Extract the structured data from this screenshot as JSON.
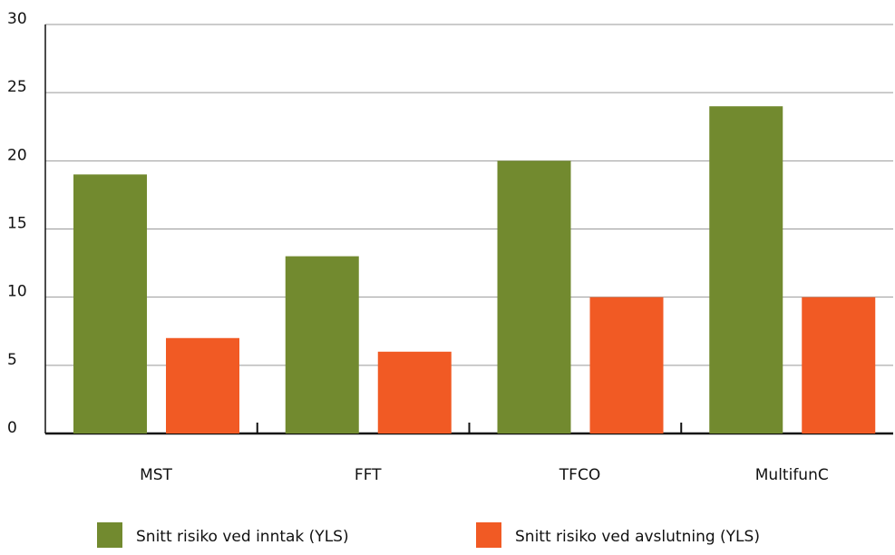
{
  "chart_data": {
    "type": "bar",
    "categories": [
      "MST",
      "FFT",
      "TFCO",
      "MultifunC"
    ],
    "series": [
      {
        "name": "Snitt risiko ved inntak (YLS)",
        "color": "#728a2f",
        "values": [
          19,
          13,
          20,
          24
        ]
      },
      {
        "name": "Snitt risiko ved avslutning (YLS)",
        "color": "#f15a24",
        "values": [
          7,
          6,
          10,
          10
        ]
      }
    ],
    "ylim": [
      0,
      30
    ],
    "yticks": [
      0,
      5,
      10,
      15,
      20,
      25,
      30
    ],
    "grid": true,
    "legend": "bottom"
  }
}
